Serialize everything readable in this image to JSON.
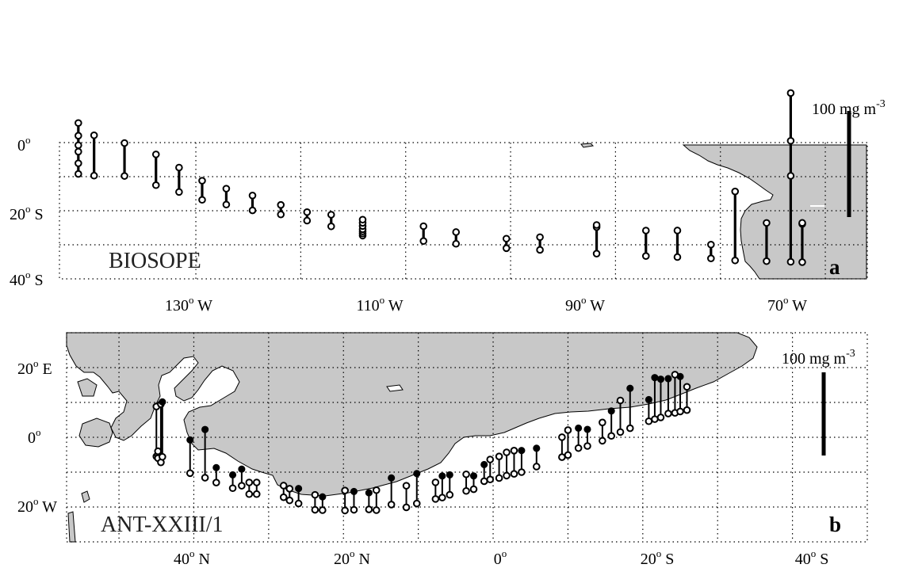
{
  "panels": [
    {
      "id": "a",
      "cruise_label": "BIOSOPE",
      "panel_letter": "a",
      "scale_bar": {
        "value": "100",
        "unit": "mg m",
        "exponent": "-3",
        "mg_m3": 100
      },
      "y_ticks": [
        {
          "value": "0",
          "sup": "o",
          "suffix": ""
        },
        {
          "value": "20",
          "sup": "o",
          "suffix": " S"
        },
        {
          "value": "40",
          "sup": "o",
          "suffix": " S"
        }
      ],
      "x_ticks": [
        {
          "value": "130",
          "sup": "o",
          "suffix": " W"
        },
        {
          "value": "110",
          "sup": "o",
          "suffix": " W"
        },
        {
          "value": "90",
          "sup": "o",
          "suffix": " W"
        },
        {
          "value": "70",
          "sup": "o",
          "suffix": " W"
        }
      ]
    },
    {
      "id": "b",
      "cruise_label": "ANT-XXIII/1",
      "panel_letter": "b",
      "scale_bar": {
        "value": "100",
        "unit": "mg m",
        "exponent": "-3",
        "mg_m3": 100
      },
      "y_ticks": [
        {
          "value": "20",
          "sup": "o",
          "suffix": " E"
        },
        {
          "value": "0",
          "sup": "o",
          "suffix": ""
        },
        {
          "value": "20",
          "sup": "o",
          "suffix": " W"
        }
      ],
      "x_ticks": [
        {
          "value": "40",
          "sup": "o",
          "suffix": " N"
        },
        {
          "value": "20",
          "sup": "o",
          "suffix": " N"
        },
        {
          "value": "0",
          "sup": "o",
          "suffix": ""
        },
        {
          "value": "20",
          "sup": "o",
          "suffix": " S"
        },
        {
          "value": "40",
          "sup": "o",
          "suffix": " S"
        }
      ]
    }
  ],
  "chart_data": [
    {
      "type": "scatter",
      "panel": "a",
      "description_units": "station longitude (deg, negative = W) and latitude (deg, negative = S); stem height proportional to concentration, scale bar = 100 mg m-3",
      "xlim": [
        -143,
        -66
      ],
      "ylim": [
        -40,
        0
      ],
      "scale_bar_value": 100,
      "markers": "open",
      "stations": [
        {
          "lon": -141.2,
          "lat": -9.2,
          "value": 48,
          "samples": [
            10,
            21,
            27,
            36,
            48
          ]
        },
        {
          "lon": -139.7,
          "lat": -9.7,
          "value": 38,
          "samples": [
            38
          ]
        },
        {
          "lon": -136.8,
          "lat": -9.8,
          "value": 31,
          "samples": [
            31
          ]
        },
        {
          "lon": -133.8,
          "lat": -12.5,
          "value": 29,
          "samples": [
            29
          ]
        },
        {
          "lon": -131.6,
          "lat": -14.5,
          "value": 23,
          "samples": [
            23
          ]
        },
        {
          "lon": -129.4,
          "lat": -16.8,
          "value": 18,
          "samples": [
            18
          ]
        },
        {
          "lon": -127.1,
          "lat": -18.2,
          "value": 15,
          "samples": [
            15
          ]
        },
        {
          "lon": -124.6,
          "lat": -19.9,
          "value": 14,
          "samples": [
            14
          ]
        },
        {
          "lon": -121.9,
          "lat": -21.1,
          "value": 9,
          "samples": [
            9
          ]
        },
        {
          "lon": -119.4,
          "lat": -22.9,
          "value": 8,
          "samples": [
            8
          ]
        },
        {
          "lon": -117.1,
          "lat": -24.6,
          "value": 11,
          "samples": [
            11
          ]
        },
        {
          "lon": -114.1,
          "lat": -27.3,
          "value": 15,
          "samples": [
            2,
            4,
            6,
            9,
            12,
            15
          ]
        },
        {
          "lon": -108.3,
          "lat": -28.9,
          "value": 14,
          "samples": [
            14
          ]
        },
        {
          "lon": -105.2,
          "lat": -29.7,
          "value": 11,
          "samples": [
            11
          ]
        },
        {
          "lon": -100.4,
          "lat": -31.0,
          "value": 9,
          "samples": [
            9
          ]
        },
        {
          "lon": -97.2,
          "lat": -31.5,
          "value": 12,
          "samples": [
            12
          ]
        },
        {
          "lon": -91.8,
          "lat": -32.6,
          "value": 27,
          "samples": [
            25,
            27
          ]
        },
        {
          "lon": -87.1,
          "lat": -33.3,
          "value": 24,
          "samples": [
            24
          ]
        },
        {
          "lon": -84.1,
          "lat": -33.6,
          "value": 25,
          "samples": [
            25
          ]
        },
        {
          "lon": -80.9,
          "lat": -34.0,
          "value": 13,
          "samples": [
            13
          ]
        },
        {
          "lon": -78.6,
          "lat": -34.6,
          "value": 65,
          "samples": [
            65
          ]
        },
        {
          "lon": -75.6,
          "lat": -34.8,
          "value": 36,
          "samples": [
            36
          ]
        },
        {
          "lon": -73.3,
          "lat": -35.0,
          "value": 159,
          "samples": [
            81,
            114,
            159
          ]
        },
        {
          "lon": -72.2,
          "lat": -35.1,
          "value": 37,
          "samples": [
            36,
            37
          ]
        }
      ]
    },
    {
      "type": "scatter",
      "panel": "b",
      "description_units": "station latitude along x (deg, positive = N, negative = S) and longitude along y (deg, positive = E, negative = W); stem height proportional to concentration, scale bar = 100 mg m-3",
      "xlim": [
        57,
        -50
      ],
      "ylim": [
        -30,
        30
      ],
      "scale_bar_value": 100,
      "markers": "open = top sample (surface), closed = deeper sample",
      "stations": [
        {
          "lat": 45.0,
          "lon": -5.5,
          "value": 30,
          "open": true,
          "extra": [
            -5,
            -6,
            -4
          ]
        },
        {
          "lat": 44.4,
          "lon": -7.2,
          "value": 35,
          "open": true
        },
        {
          "lat": 44.2,
          "lon": -5.6,
          "value": 33,
          "open": false
        },
        {
          "lat": 40.5,
          "lon": -10.3,
          "value": 20,
          "open": false
        },
        {
          "lat": 38.5,
          "lon": -11.6,
          "value": 29,
          "open": false
        },
        {
          "lat": 37.0,
          "lon": -13.0,
          "value": 9,
          "open": false
        },
        {
          "lat": 34.8,
          "lon": -14.6,
          "value": 8,
          "open": false
        },
        {
          "lat": 33.6,
          "lon": -13.9,
          "value": 10,
          "open": false
        },
        {
          "lat": 32.6,
          "lon": -16.3,
          "value": 7,
          "open": true
        },
        {
          "lat": 31.6,
          "lon": -16.3,
          "value": 7,
          "open": true
        },
        {
          "lat": 28.0,
          "lon": -17.2,
          "value": 7,
          "open": true
        },
        {
          "lat": 27.2,
          "lon": -18.1,
          "value": 7,
          "open": true
        },
        {
          "lat": 26.0,
          "lon": -19.0,
          "value": 9,
          "open": false
        },
        {
          "lat": 23.8,
          "lon": -20.8,
          "value": 9,
          "open": true
        },
        {
          "lat": 22.8,
          "lon": -20.9,
          "value": 8,
          "open": false
        },
        {
          "lat": 19.8,
          "lon": -21.0,
          "value": 12,
          "open": true
        },
        {
          "lat": 18.6,
          "lon": -20.8,
          "value": 11,
          "open": false
        },
        {
          "lat": 16.6,
          "lon": -20.7,
          "value": 10,
          "open": false
        },
        {
          "lat": 15.6,
          "lon": -20.9,
          "value": 12,
          "open": true
        },
        {
          "lat": 13.6,
          "lon": -19.3,
          "value": 16,
          "open": false
        },
        {
          "lat": 11.6,
          "lon": -20.1,
          "value": 13,
          "open": true
        },
        {
          "lat": 10.2,
          "lon": -19.0,
          "value": 18,
          "open": false
        },
        {
          "lat": 7.7,
          "lon": -17.7,
          "value": 10,
          "open": true
        },
        {
          "lat": 6.8,
          "lon": -17.3,
          "value": 13,
          "open": false
        },
        {
          "lat": 5.8,
          "lon": -16.5,
          "value": 12,
          "open": false
        },
        {
          "lat": 3.6,
          "lon": -15.4,
          "value": 10,
          "open": true
        },
        {
          "lat": 2.6,
          "lon": -14.9,
          "value": 8,
          "open": false
        },
        {
          "lat": 1.2,
          "lon": -12.6,
          "value": 10,
          "open": false
        },
        {
          "lat": 0.4,
          "lon": -12.1,
          "value": 12,
          "open": true
        },
        {
          "lat": -0.8,
          "lon": -11.7,
          "value": 13,
          "open": true
        },
        {
          "lat": -1.8,
          "lon": -11.0,
          "value": 14,
          "open": true
        },
        {
          "lat": -2.8,
          "lon": -10.5,
          "value": 14,
          "open": true
        },
        {
          "lat": -3.8,
          "lon": -10.0,
          "value": 13,
          "open": false
        },
        {
          "lat": -5.8,
          "lon": -8.4,
          "value": 11,
          "open": false
        },
        {
          "lat": -9.2,
          "lon": -5.7,
          "value": 12,
          "open": true
        },
        {
          "lat": -10.0,
          "lon": -5.1,
          "value": 15,
          "open": true
        },
        {
          "lat": -11.4,
          "lon": -3.1,
          "value": 12,
          "open": false
        },
        {
          "lat": -12.6,
          "lon": -2.5,
          "value": 10,
          "open": false
        },
        {
          "lat": -14.6,
          "lon": -1.0,
          "value": 11,
          "open": true
        },
        {
          "lat": -15.8,
          "lon": 0.4,
          "value": 15,
          "open": false
        },
        {
          "lat": -17.0,
          "lon": 1.5,
          "value": 19,
          "open": true
        },
        {
          "lat": -18.3,
          "lon": 2.6,
          "value": 24,
          "open": false
        },
        {
          "lat": -20.8,
          "lon": 4.6,
          "value": 13,
          "open": false
        },
        {
          "lat": -21.6,
          "lon": 5.2,
          "value": 25,
          "open": false
        },
        {
          "lat": -22.4,
          "lon": 5.7,
          "value": 23,
          "open": false
        },
        {
          "lat": -23.4,
          "lon": 6.8,
          "value": 21,
          "open": false
        },
        {
          "lat": -24.3,
          "lon": 7.0,
          "value": 23,
          "open": true
        },
        {
          "lat": -25.0,
          "lon": 7.4,
          "value": 21,
          "open": false
        },
        {
          "lat": -25.9,
          "lon": 7.8,
          "value": 14,
          "open": true
        }
      ]
    }
  ]
}
